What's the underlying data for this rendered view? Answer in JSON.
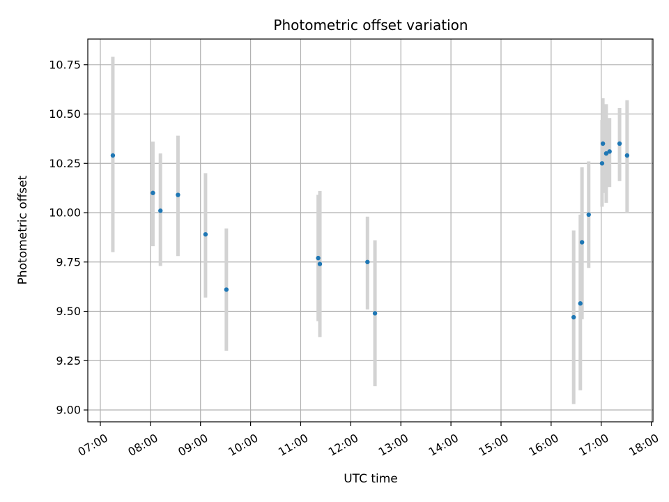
{
  "chart_data": {
    "type": "scatter",
    "title": "Photometric offset variation",
    "xlabel": "UTC time",
    "ylabel": "Photometric offset",
    "x_ticks": [
      "07:00",
      "08:00",
      "09:00",
      "10:00",
      "11:00",
      "12:00",
      "13:00",
      "14:00",
      "15:00",
      "16:00",
      "17:00",
      "18:00"
    ],
    "y_ticks": [
      "9.00",
      "9.25",
      "9.50",
      "9.75",
      "10.00",
      "10.25",
      "10.50",
      "10.75"
    ],
    "xlim": [
      "06:45",
      "18:02"
    ],
    "ylim": [
      8.94,
      10.88
    ],
    "grid": true,
    "colors": {
      "point": "#1f77b4",
      "errorbar": "#d3d3d3",
      "grid": "#b0b0b0"
    },
    "points": [
      {
        "x": "07:15",
        "y": 10.29,
        "low": 9.8,
        "high": 10.79
      },
      {
        "x": "08:03",
        "y": 10.1,
        "low": 9.83,
        "high": 10.36
      },
      {
        "x": "08:12",
        "y": 10.01,
        "low": 9.73,
        "high": 10.3
      },
      {
        "x": "08:33",
        "y": 10.09,
        "low": 9.78,
        "high": 10.39
      },
      {
        "x": "09:06",
        "y": 9.89,
        "low": 9.57,
        "high": 10.2
      },
      {
        "x": "09:31",
        "y": 9.61,
        "low": 9.3,
        "high": 9.92
      },
      {
        "x": "11:21",
        "y": 9.77,
        "low": 9.45,
        "high": 10.09
      },
      {
        "x": "11:23",
        "y": 9.74,
        "low": 9.37,
        "high": 10.11
      },
      {
        "x": "12:20",
        "y": 9.75,
        "low": 9.51,
        "high": 9.98
      },
      {
        "x": "12:29",
        "y": 9.49,
        "low": 9.12,
        "high": 9.86
      },
      {
        "x": "16:27",
        "y": 9.47,
        "low": 9.03,
        "high": 9.91
      },
      {
        "x": "16:35",
        "y": 9.54,
        "low": 9.1,
        "high": 9.99
      },
      {
        "x": "16:37",
        "y": 9.85,
        "low": 9.46,
        "high": 10.23
      },
      {
        "x": "16:45",
        "y": 9.99,
        "low": 9.72,
        "high": 10.26
      },
      {
        "x": "17:01",
        "y": 10.25,
        "low": 10.03,
        "high": 10.47
      },
      {
        "x": "17:02",
        "y": 10.35,
        "low": 10.1,
        "high": 10.58
      },
      {
        "x": "17:06",
        "y": 10.3,
        "low": 10.05,
        "high": 10.55
      },
      {
        "x": "17:10",
        "y": 10.31,
        "low": 10.13,
        "high": 10.48
      },
      {
        "x": "17:22",
        "y": 10.35,
        "low": 10.16,
        "high": 10.53
      },
      {
        "x": "17:31",
        "y": 10.29,
        "low": 10.0,
        "high": 10.57
      }
    ]
  }
}
